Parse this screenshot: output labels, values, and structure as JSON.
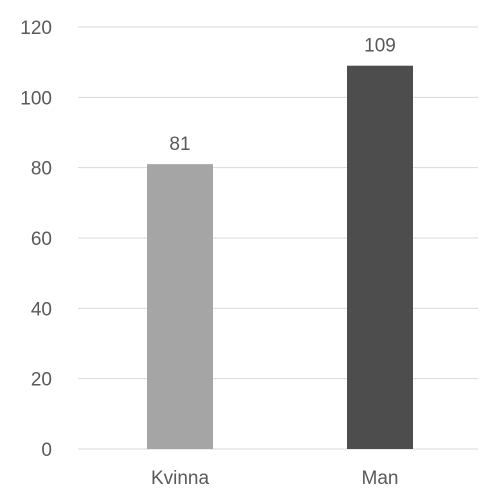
{
  "chart_data": {
    "type": "bar",
    "title": "",
    "xlabel": "",
    "ylabel": "",
    "categories": [
      "Kvinna",
      "Man"
    ],
    "values": [
      81,
      109
    ],
    "data_labels": [
      "81",
      "109"
    ],
    "ylim": [
      0,
      120
    ],
    "yticks": [
      0,
      20,
      40,
      60,
      80,
      100,
      120
    ],
    "ytick_labels": [
      "0",
      "20",
      "40",
      "60",
      "80",
      "100",
      "120"
    ],
    "bar_colors": [
      "#a5a5a5",
      "#4d4d4d"
    ],
    "grid": true,
    "legend": "none"
  }
}
